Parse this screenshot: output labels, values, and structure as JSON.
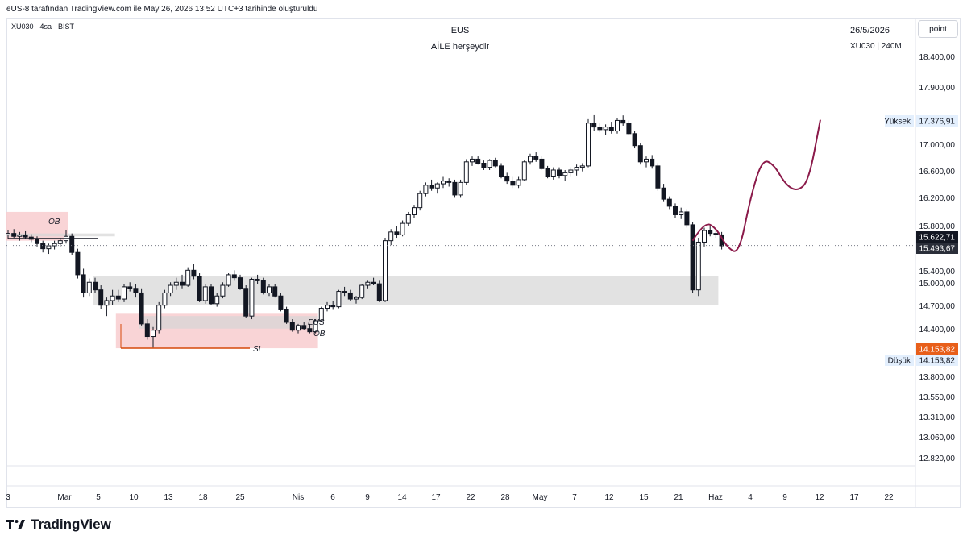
{
  "header": {
    "attribution": "eUS-8 tarafından TradingView.com ile May 26, 2026 13:52 UTC+3 tarihinde oluşturuldu",
    "symbol_line": "XU030 · 4sa · BIST",
    "title": "EUS",
    "subtitle": "AİLE herşeydir",
    "date": "26/5/2026",
    "symbol_interval": "XU030 | 240M",
    "point_button": "point"
  },
  "footer": {
    "brand": "TradingView"
  },
  "colors": {
    "up": "#ffffff",
    "down": "#131722",
    "zone_red": "#f8cccf",
    "zone_gray": "#d6d6d6",
    "projection": "#8b1a4a",
    "sl_line": "#d6490a",
    "last_price_bg": "#131722",
    "low_tag_bg": "#e85f1a"
  },
  "chart_data": {
    "type": "candlestick",
    "title": "EUS",
    "subtitle": "AİLE herşeydir",
    "y_axis": {
      "ticks": [
        "18.400,00",
        "17.900,00",
        "17.000,00",
        "16.600,00",
        "16.200,00",
        "15.800,00",
        "15.400,00",
        "15.000,00",
        "14.700,00",
        "14.400,00",
        "13.800,00",
        "13.550,00",
        "13.310,00",
        "13.060,00",
        "12.820,00"
      ],
      "scale": "log",
      "range": [
        12700,
        18800
      ]
    },
    "x_axis": {
      "ticks": [
        "3",
        "Mar",
        "5",
        "10",
        "13",
        "18",
        "25",
        "Nis",
        "6",
        "9",
        "14",
        "17",
        "22",
        "28",
        "May",
        "7",
        "12",
        "15",
        "21",
        "Haz",
        "4",
        "9",
        "12",
        "17",
        "22"
      ]
    },
    "price_labels": {
      "high_label": "Yüksek",
      "high_value": "17.376,91",
      "current_value": "15.622,71",
      "prev_close_value": "15.493,67",
      "low_value_tag": "14.153,82",
      "low_label": "Düşük",
      "low_value": "14.153,82"
    },
    "annotations": {
      "ob_top": "OB",
      "eus_zone": "EUS",
      "ob_bottom": "OB",
      "sl": "SL"
    },
    "candles": [
      [
        15640,
        15700,
        15580,
        15660
      ],
      [
        15660,
        15720,
        15600,
        15620
      ],
      [
        15620,
        15680,
        15560,
        15640
      ],
      [
        15640,
        15690,
        15590,
        15610
      ],
      [
        15610,
        15650,
        15540,
        15580
      ],
      [
        15580,
        15620,
        15480,
        15520
      ],
      [
        15520,
        15560,
        15400,
        15450
      ],
      [
        15450,
        15520,
        15380,
        15490
      ],
      [
        15490,
        15560,
        15440,
        15520
      ],
      [
        15520,
        15600,
        15480,
        15560
      ],
      [
        15560,
        15700,
        15520,
        15620
      ],
      [
        15620,
        15660,
        15360,
        15400
      ],
      [
        15400,
        15450,
        15050,
        15100
      ],
      [
        15100,
        15180,
        14800,
        14860
      ],
      [
        14860,
        15050,
        14820,
        15000
      ],
      [
        15000,
        15060,
        14860,
        14900
      ],
      [
        14900,
        14960,
        14650,
        14700
      ],
      [
        14700,
        14800,
        14560,
        14760
      ],
      [
        14760,
        14900,
        14700,
        14820
      ],
      [
        14820,
        14900,
        14740,
        14780
      ],
      [
        14780,
        14980,
        14740,
        14940
      ],
      [
        14940,
        15000,
        14880,
        14920
      ],
      [
        14920,
        14980,
        14800,
        14860
      ],
      [
        14860,
        14920,
        14440,
        14460
      ],
      [
        14460,
        14520,
        14260,
        14300
      ],
      [
        14300,
        14420,
        14160,
        14380
      ],
      [
        14380,
        14740,
        14340,
        14700
      ],
      [
        14700,
        14900,
        14660,
        14860
      ],
      [
        14860,
        15000,
        14820,
        14960
      ],
      [
        14960,
        15060,
        14900,
        15000
      ],
      [
        15000,
        15100,
        14920,
        14960
      ],
      [
        14960,
        15200,
        14940,
        15160
      ],
      [
        15160,
        15240,
        15040,
        15080
      ],
      [
        15080,
        15120,
        14740,
        14760
      ],
      [
        14760,
        14980,
        14720,
        14940
      ],
      [
        14940,
        14980,
        14700,
        14720
      ],
      [
        14720,
        14860,
        14680,
        14820
      ],
      [
        14820,
        15000,
        14790,
        14960
      ],
      [
        14960,
        15120,
        14940,
        15100
      ],
      [
        15100,
        15160,
        15020,
        15060
      ],
      [
        15060,
        15100,
        14900,
        14920
      ],
      [
        14920,
        14960,
        14540,
        14560
      ],
      [
        14560,
        15060,
        14520,
        15040
      ],
      [
        15040,
        15100,
        14980,
        15020
      ],
      [
        15020,
        15060,
        14840,
        14860
      ],
      [
        14860,
        14980,
        14820,
        14940
      ],
      [
        14940,
        14980,
        14800,
        14820
      ],
      [
        14820,
        14860,
        14620,
        14640
      ],
      [
        14640,
        14680,
        14460,
        14480
      ],
      [
        14480,
        14520,
        14360,
        14380
      ],
      [
        14380,
        14460,
        14340,
        14440
      ],
      [
        14440,
        14480,
        14380,
        14400
      ],
      [
        14400,
        14460,
        14340,
        14360
      ],
      [
        14360,
        14520,
        14340,
        14500
      ],
      [
        14500,
        14680,
        14480,
        14660
      ],
      [
        14660,
        14740,
        14620,
        14700
      ],
      [
        14700,
        14760,
        14640,
        14680
      ],
      [
        14680,
        14900,
        14660,
        14880
      ],
      [
        14880,
        14940,
        14820,
        14860
      ],
      [
        14860,
        14900,
        14760,
        14780
      ],
      [
        14780,
        14820,
        14720,
        14800
      ],
      [
        14800,
        14980,
        14780,
        14960
      ],
      [
        14960,
        15020,
        14920,
        15000
      ],
      [
        15000,
        15060,
        14960,
        14980
      ],
      [
        14980,
        15020,
        14740,
        14760
      ],
      [
        14760,
        15600,
        14740,
        15560
      ],
      [
        15560,
        15720,
        15500,
        15680
      ],
      [
        15680,
        15760,
        15600,
        15640
      ],
      [
        15640,
        15840,
        15620,
        15800
      ],
      [
        15800,
        15960,
        15760,
        15920
      ],
      [
        15920,
        16060,
        15880,
        16020
      ],
      [
        16020,
        16260,
        15980,
        16220
      ],
      [
        16220,
        16380,
        16180,
        16340
      ],
      [
        16340,
        16420,
        16260,
        16300
      ],
      [
        16300,
        16380,
        16220,
        16360
      ],
      [
        16360,
        16460,
        16300,
        16400
      ],
      [
        16400,
        16440,
        16320,
        16380
      ],
      [
        16380,
        16420,
        16160,
        16200
      ],
      [
        16200,
        16420,
        16160,
        16380
      ],
      [
        16380,
        16720,
        16340,
        16680
      ],
      [
        16680,
        16760,
        16620,
        16720
      ],
      [
        16720,
        16760,
        16640,
        16660
      ],
      [
        16660,
        16700,
        16560,
        16600
      ],
      [
        16600,
        16720,
        16560,
        16700
      ],
      [
        16700,
        16740,
        16600,
        16620
      ],
      [
        16620,
        16660,
        16440,
        16460
      ],
      [
        16460,
        16520,
        16360,
        16400
      ],
      [
        16400,
        16460,
        16300,
        16340
      ],
      [
        16340,
        16460,
        16300,
        16420
      ],
      [
        16420,
        16700,
        16400,
        16680
      ],
      [
        16680,
        16800,
        16640,
        16760
      ],
      [
        16760,
        16820,
        16680,
        16720
      ],
      [
        16720,
        16760,
        16560,
        16580
      ],
      [
        16580,
        16620,
        16440,
        16460
      ],
      [
        16460,
        16600,
        16420,
        16560
      ],
      [
        16560,
        16600,
        16440,
        16480
      ],
      [
        16480,
        16560,
        16400,
        16520
      ],
      [
        16520,
        16600,
        16460,
        16560
      ],
      [
        16560,
        16640,
        16480,
        16600
      ],
      [
        16600,
        16660,
        16540,
        16620
      ],
      [
        16620,
        17320,
        16600,
        17260
      ],
      [
        17260,
        17380,
        17140,
        17200
      ],
      [
        17200,
        17260,
        17120,
        17160
      ],
      [
        17160,
        17240,
        17080,
        17200
      ],
      [
        17200,
        17280,
        17100,
        17140
      ],
      [
        17140,
        17340,
        17100,
        17300
      ],
      [
        17300,
        17377,
        17220,
        17260
      ],
      [
        17260,
        17300,
        17080,
        17100
      ],
      [
        17100,
        17140,
        16880,
        16920
      ],
      [
        16920,
        16960,
        16640,
        16680
      ],
      [
        16680,
        16760,
        16600,
        16720
      ],
      [
        16720,
        16780,
        16580,
        16620
      ],
      [
        16620,
        16660,
        16260,
        16300
      ],
      [
        16300,
        16360,
        16100,
        16140
      ],
      [
        16140,
        16180,
        16000,
        16040
      ],
      [
        16040,
        16080,
        15880,
        15920
      ],
      [
        15920,
        16020,
        15860,
        15960
      ],
      [
        15960,
        16000,
        15740,
        15780
      ],
      [
        15780,
        15820,
        14860,
        14900
      ],
      [
        14900,
        15600,
        14820,
        15540
      ],
      [
        15540,
        15740,
        15480,
        15700
      ],
      [
        15700,
        15760,
        15620,
        15660
      ],
      [
        15660,
        15700,
        15600,
        15640
      ],
      [
        15640,
        15680,
        15440,
        15490
      ]
    ],
    "zones": [
      {
        "label": "OB",
        "type": "red",
        "x0_idx": 0,
        "x1_idx": 10,
        "y0": 15560,
        "y1": 15960
      },
      {
        "type": "gray",
        "x0_idx": 0,
        "x1_idx": 18,
        "y0": 15620,
        "y1": 15660
      },
      {
        "type": "gray",
        "x0_idx": 15,
        "x1_idx": 122,
        "y0": 14700,
        "y1": 15080
      },
      {
        "label": "OB",
        "type": "red",
        "x0_idx": 19,
        "x1_idx": 53,
        "y0": 14153,
        "y1": 14600
      },
      {
        "label": "EUS",
        "type": "gray",
        "x0_idx": 23,
        "x1_idx": 53,
        "y0": 14400,
        "y1": 14560
      }
    ],
    "sl_level": 14153.82,
    "projection_path": [
      [
        118,
        15560
      ],
      [
        120,
        15820
      ],
      [
        122,
        15740
      ],
      [
        124,
        15460
      ],
      [
        126,
        15380
      ],
      [
        128,
        16180
      ],
      [
        130,
        16720
      ],
      [
        132,
        16640
      ],
      [
        134,
        16350
      ],
      [
        136,
        16250
      ],
      [
        138,
        16400
      ],
      [
        140,
        17310
      ]
    ]
  }
}
